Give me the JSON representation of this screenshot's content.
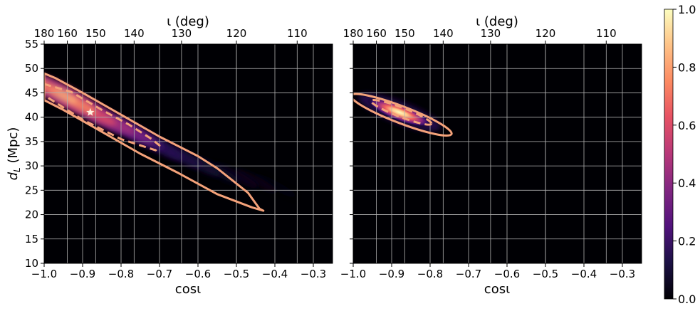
{
  "chart_data": [
    {
      "type": "heatmap",
      "panel": "left",
      "title": "",
      "xlabel": "cosι",
      "ylabel": "d_L (Mpc)",
      "top_axis_label": "ι (deg)",
      "xlim": [
        -1.0,
        -0.25
      ],
      "ylim": [
        10,
        55
      ],
      "xticks": [
        -1.0,
        -0.9,
        -0.8,
        -0.7,
        -0.6,
        -0.5,
        -0.4,
        -0.3
      ],
      "xtick_labels": [
        "−1.0",
        "−0.9",
        "−0.8",
        "−0.7",
        "−0.6",
        "−0.5",
        "−0.4",
        "−0.3"
      ],
      "yticks": [
        10,
        15,
        20,
        25,
        30,
        35,
        40,
        45,
        50,
        55
      ],
      "ytick_labels": [
        "10",
        "15",
        "20",
        "25",
        "30",
        "35",
        "40",
        "45",
        "50",
        "55"
      ],
      "top_ticks_deg": [
        180,
        160,
        150,
        140,
        130,
        120,
        110
      ],
      "top_tick_labels": [
        "180",
        "160",
        "150",
        "140",
        "130",
        "120",
        "110"
      ],
      "grid": true,
      "injection_marker": {
        "cos_iota": -0.88,
        "dL": 41
      },
      "density_ridge": [
        {
          "cos_iota": -1.0,
          "dL": 46.5,
          "level": 0.72
        },
        {
          "cos_iota": -0.95,
          "dL": 44.5,
          "level": 0.82
        },
        {
          "cos_iota": -0.9,
          "dL": 42.3,
          "level": 0.74
        },
        {
          "cos_iota": -0.85,
          "dL": 40.0,
          "level": 0.6
        },
        {
          "cos_iota": -0.8,
          "dL": 38.2,
          "level": 0.46
        },
        {
          "cos_iota": -0.75,
          "dL": 36.2,
          "level": 0.35
        },
        {
          "cos_iota": -0.7,
          "dL": 34.0,
          "level": 0.26
        },
        {
          "cos_iota": -0.65,
          "dL": 32.3,
          "level": 0.2
        },
        {
          "cos_iota": -0.6,
          "dL": 30.5,
          "level": 0.15
        },
        {
          "cos_iota": -0.55,
          "dL": 29.0,
          "level": 0.11
        },
        {
          "cos_iota": -0.5,
          "dL": 27.9,
          "level": 0.08
        },
        {
          "cos_iota": -0.45,
          "dL": 27.0,
          "level": 0.05
        },
        {
          "cos_iota": -0.4,
          "dL": 26.0,
          "level": 0.03
        }
      ],
      "contour_90": [
        [
          -1.0,
          49
        ],
        [
          -0.97,
          48
        ],
        [
          -0.9,
          45
        ],
        [
          -0.8,
          40.5
        ],
        [
          -0.7,
          36
        ],
        [
          -0.6,
          32
        ],
        [
          -0.55,
          29.5
        ],
        [
          -0.51,
          27
        ],
        [
          -0.47,
          24.5
        ],
        [
          -0.44,
          21.2
        ],
        [
          -0.43,
          20.8
        ],
        [
          -0.46,
          21.5
        ],
        [
          -0.55,
          24.2
        ],
        [
          -0.65,
          28.5
        ],
        [
          -0.75,
          32.5
        ],
        [
          -0.85,
          37
        ],
        [
          -0.95,
          41.5
        ],
        [
          -1.0,
          43.5
        ]
      ],
      "contour_50": [
        [
          -1.0,
          46.8
        ],
        [
          -0.93,
          45.2
        ],
        [
          -0.85,
          41.5
        ],
        [
          -0.78,
          38.5
        ],
        [
          -0.72,
          35.5
        ],
        [
          -0.7,
          34.2
        ],
        [
          -0.71,
          33.2
        ],
        [
          -0.8,
          35.5
        ],
        [
          -0.9,
          39.5
        ],
        [
          -1.0,
          44.5
        ]
      ]
    },
    {
      "type": "heatmap",
      "panel": "right",
      "title": "",
      "xlabel": "cosι",
      "top_axis_label": "ι (deg)",
      "xlim": [
        -1.0,
        -0.25
      ],
      "ylim": [
        10,
        55
      ],
      "xticks": [
        -1.0,
        -0.9,
        -0.8,
        -0.7,
        -0.6,
        -0.5,
        -0.4,
        -0.3
      ],
      "xtick_labels": [
        "−1.0",
        "−0.9",
        "−0.8",
        "−0.7",
        "−0.6",
        "−0.5",
        "−0.4",
        "−0.3"
      ],
      "top_ticks_deg": [
        180,
        160,
        150,
        140,
        130,
        120,
        110
      ],
      "top_tick_labels": [
        "180",
        "160",
        "150",
        "140",
        "130",
        "120",
        "110"
      ],
      "grid": true,
      "density_peak": {
        "cos_iota": -0.88,
        "dL": 41,
        "level": 1.0
      },
      "contour_90": {
        "center_cos_iota": -0.875,
        "center_dL": 40.5,
        "half_width_cos_iota": 0.125,
        "half_height_dL": 2.8,
        "tilt": "down-right"
      },
      "contour_50": {
        "center_cos_iota": -0.875,
        "center_dL": 41,
        "half_width_cos_iota": 0.075,
        "half_height_dL": 1.6,
        "tilt": "down-right"
      }
    }
  ],
  "colorbar": {
    "colormap": "magma",
    "range": [
      0.0,
      1.0
    ],
    "tick_labels": [
      "0.0",
      "0.2",
      "0.4",
      "0.6",
      "0.8",
      "1.0"
    ],
    "ticks": [
      0.0,
      0.2,
      0.4,
      0.6,
      0.8,
      1.0
    ]
  },
  "colors": {
    "background": "#000004",
    "contour": "#f4a27a",
    "grid": "#b0b0b0",
    "marker": "#fff0e0"
  }
}
